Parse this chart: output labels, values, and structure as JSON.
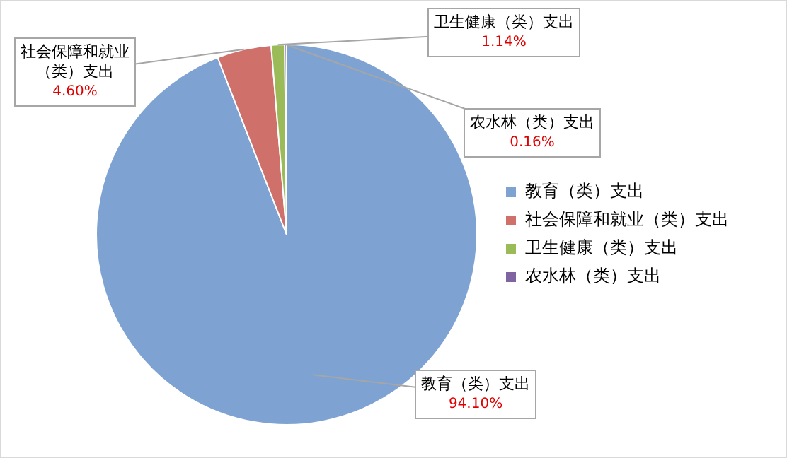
{
  "chart_data": {
    "type": "pie",
    "categories": [
      "教育（类）支出",
      "社会保障和就业（类）支出",
      "卫生健康（类）支出",
      "农水林（类）支出"
    ],
    "values": [
      94.1,
      4.6,
      1.14,
      0.16
    ],
    "value_labels": [
      "94.10%",
      "4.60%",
      "1.14%",
      "0.16%"
    ],
    "colors": [
      "#7ea3d3",
      "#d0706b",
      "#9bbb59",
      "#8064a2"
    ],
    "legend": "right"
  }
}
